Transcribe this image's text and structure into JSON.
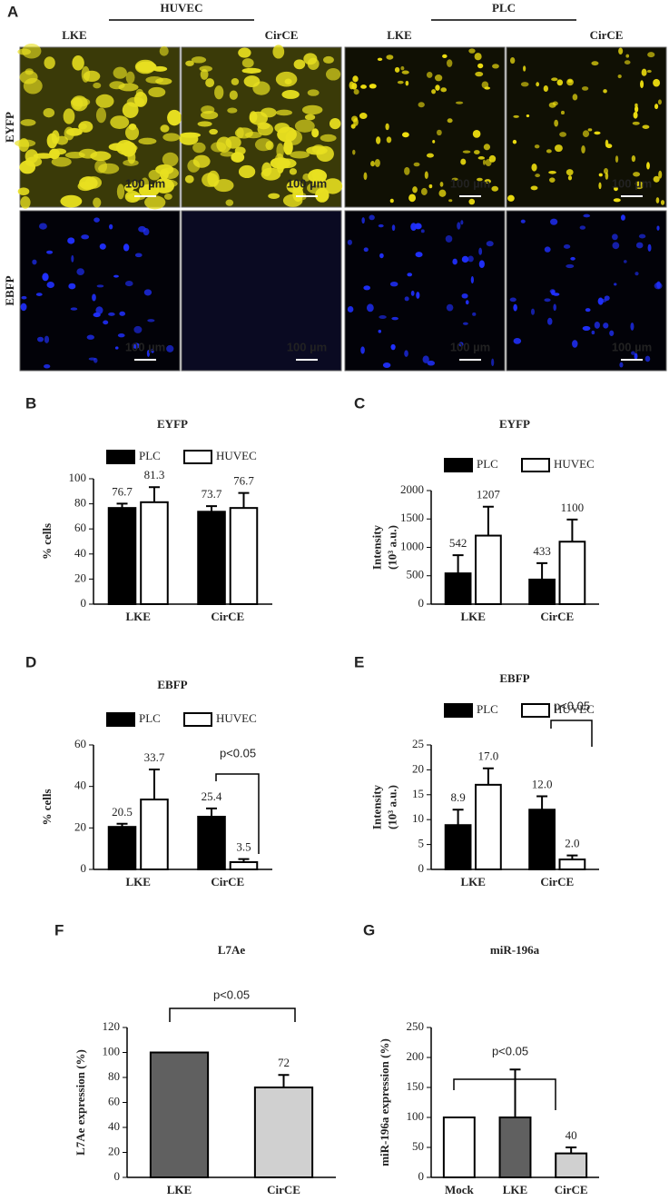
{
  "panel_a": {
    "panel": "A",
    "groups": [
      "HUVEC",
      "PLC"
    ],
    "columns": [
      "LKE",
      "CirCE",
      "LKE",
      "CirCE"
    ],
    "rows": [
      "EYFP",
      "EBFP"
    ],
    "scale_bar": "100 µm"
  },
  "chart_data": [
    {
      "type": "bar",
      "panel": "B",
      "title": "EYFP",
      "ylabel": [
        "% cells"
      ],
      "categories": [
        "LKE",
        "CirCE"
      ],
      "series": [
        {
          "name": "PLC",
          "color": "#000000",
          "values": [
            76.7,
            73.7
          ],
          "errors": [
            3.5,
            4.5
          ]
        },
        {
          "name": "HUVEC",
          "color": "#ffffff",
          "values": [
            81.3,
            76.7
          ],
          "errors": [
            12,
            12
          ]
        }
      ],
      "ylim": [
        0,
        100
      ],
      "yticks": [
        0,
        20,
        40,
        60,
        80,
        100
      ]
    },
    {
      "type": "bar",
      "panel": "C",
      "title": "EYFP",
      "ylabel": [
        "Intensity",
        "(10³ a.u.)"
      ],
      "categories": [
        "LKE",
        "CirCE"
      ],
      "series": [
        {
          "name": "PLC",
          "color": "#000000",
          "values": [
            542,
            433
          ],
          "errors": [
            320,
            290
          ]
        },
        {
          "name": "HUVEC",
          "color": "#ffffff",
          "values": [
            1207,
            1100
          ],
          "errors": [
            510,
            390
          ]
        }
      ],
      "ylim": [
        0,
        2000
      ],
      "yticks": [
        0,
        500,
        1000,
        1500,
        2000
      ]
    },
    {
      "type": "bar",
      "panel": "D",
      "title": "EBFP",
      "ylabel": [
        "% cells"
      ],
      "categories": [
        "LKE",
        "CirCE"
      ],
      "series": [
        {
          "name": "PLC",
          "color": "#000000",
          "values": [
            20.5,
            25.4
          ],
          "errors": [
            1.5,
            4
          ]
        },
        {
          "name": "HUVEC",
          "color": "#ffffff",
          "values": [
            33.7,
            3.5
          ],
          "errors": [
            14.5,
            1.5
          ]
        }
      ],
      "ylim": [
        0,
        60
      ],
      "yticks": [
        0,
        20,
        40,
        60
      ],
      "annotation": "p<0.05"
    },
    {
      "type": "bar",
      "panel": "E",
      "title": "EBFP",
      "ylabel": [
        "Intensity",
        "(10³ a.u.)"
      ],
      "categories": [
        "LKE",
        "CirCE"
      ],
      "series": [
        {
          "name": "PLC",
          "color": "#000000",
          "values": [
            8.9,
            12.0
          ],
          "value_labels": [
            "8.9",
            "12.0"
          ],
          "errors": [
            3.1,
            2.7
          ]
        },
        {
          "name": "HUVEC",
          "color": "#ffffff",
          "values": [
            17.0,
            2.0
          ],
          "value_labels": [
            "17.0",
            "2.0"
          ],
          "errors": [
            3.3,
            0.8
          ]
        }
      ],
      "ylim": [
        0,
        25
      ],
      "yticks": [
        0,
        5,
        10,
        15,
        20,
        25
      ],
      "annotation": "p<0.05"
    },
    {
      "type": "bar",
      "panel": "F",
      "title": "L7Ae",
      "ylabel": [
        "L7Ae expression (%)"
      ],
      "categories": [
        "LKE",
        "CirCE"
      ],
      "values": [
        100,
        72
      ],
      "value_labels": [
        null,
        "72"
      ],
      "errors": [
        0,
        10
      ],
      "colors": [
        "#606060",
        "#d0d0d0"
      ],
      "ylim": [
        0,
        120
      ],
      "yticks": [
        0,
        20,
        40,
        60,
        80,
        100,
        120
      ],
      "annotation": "p<0.05"
    },
    {
      "type": "bar",
      "panel": "G",
      "title": "miR-196a",
      "ylabel": [
        "miR-196a expression (%)"
      ],
      "categories": [
        "Mock",
        "LKE",
        "CirCE"
      ],
      "values": [
        100,
        100,
        40
      ],
      "value_labels": [
        null,
        null,
        "40"
      ],
      "errors": [
        0,
        80,
        10
      ],
      "colors": [
        "#ffffff",
        "#606060",
        "#d0d0d0"
      ],
      "ylim": [
        0,
        250
      ],
      "yticks": [
        0,
        50,
        100,
        150,
        200,
        250
      ],
      "annotation": "p<0.05"
    }
  ]
}
